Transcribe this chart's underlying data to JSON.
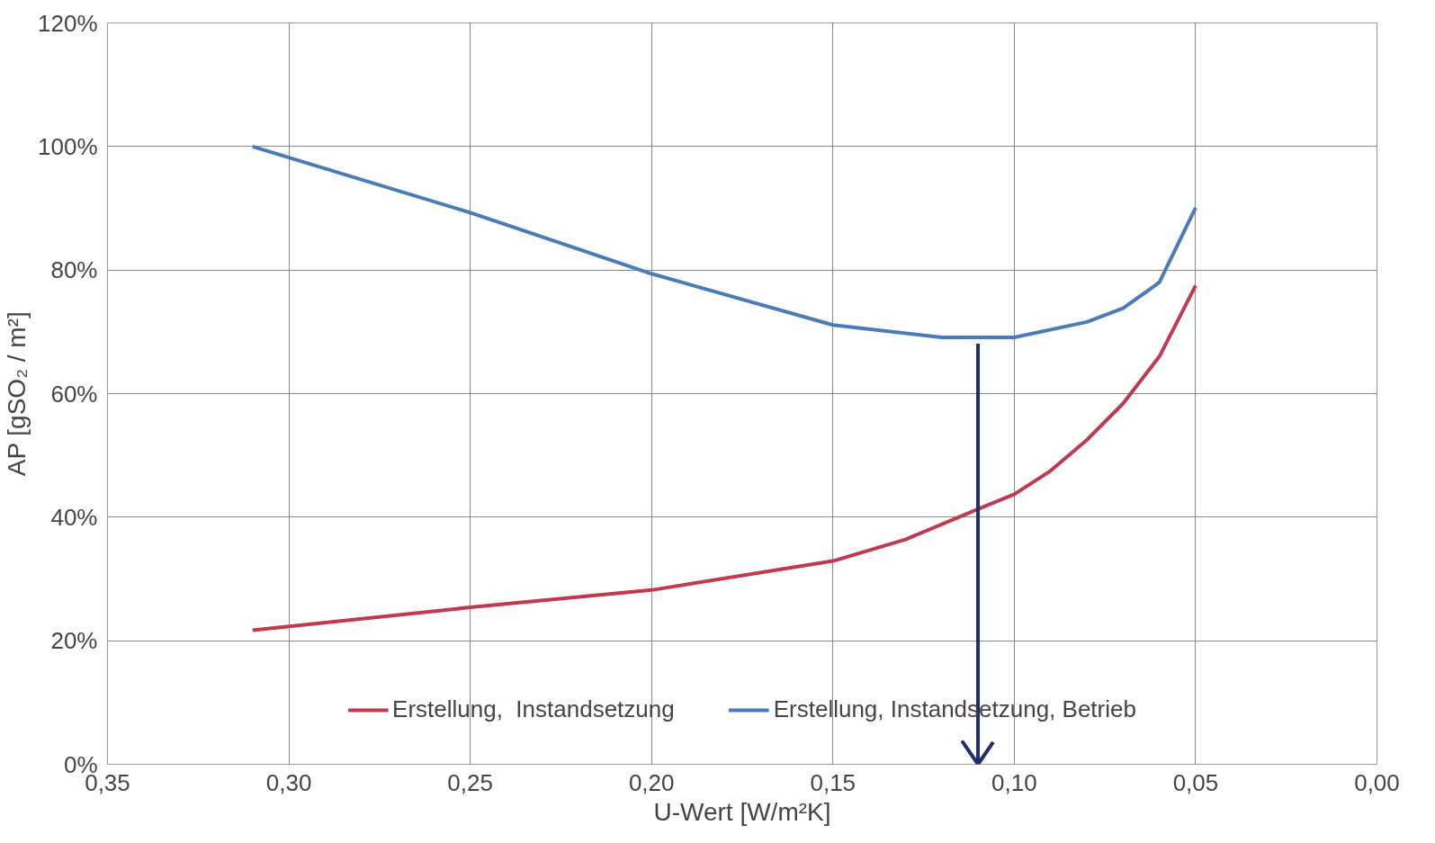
{
  "chart_data": {
    "type": "line",
    "xlabel": "U-Wert [W/m²K]",
    "ylabel": "AP [gSO₂ / m²]",
    "xlim": [
      0.35,
      0.0
    ],
    "ylim": [
      0,
      120
    ],
    "xticks": [
      {
        "value": 0.35,
        "label": "0,35"
      },
      {
        "value": 0.3,
        "label": "0,30"
      },
      {
        "value": 0.25,
        "label": "0,25"
      },
      {
        "value": 0.2,
        "label": "0,20"
      },
      {
        "value": 0.15,
        "label": "0,15"
      },
      {
        "value": 0.1,
        "label": "0,10"
      },
      {
        "value": 0.05,
        "label": "0,05"
      },
      {
        "value": 0.0,
        "label": "0,00"
      }
    ],
    "yticks": [
      {
        "value": 0,
        "label": "0%"
      },
      {
        "value": 20,
        "label": "20%"
      },
      {
        "value": 40,
        "label": "40%"
      },
      {
        "value": 60,
        "label": "60%"
      },
      {
        "value": 80,
        "label": "80%"
      },
      {
        "value": 100,
        "label": "100%"
      },
      {
        "value": 120,
        "label": "120%"
      }
    ],
    "grid": true,
    "legend": "bottom",
    "marker": "none",
    "line_style": "solid",
    "series": [
      {
        "name": "Erstellung,  Instandsetzung",
        "color": "#c0394f",
        "x": [
          0.31,
          0.25,
          0.2,
          0.15,
          0.13,
          0.11,
          0.1,
          0.09,
          0.08,
          0.07,
          0.06,
          0.05
        ],
        "values": [
          21.7,
          25.4,
          28.2,
          32.9,
          36.4,
          41.3,
          43.7,
          47.5,
          52.5,
          58.4,
          66,
          77.5
        ]
      },
      {
        "name": "Erstellung, Instandsetzung, Betrieb",
        "color": "#4a7ab8",
        "x": [
          0.31,
          0.25,
          0.2,
          0.15,
          0.12,
          0.1,
          0.08,
          0.07,
          0.06,
          0.05
        ],
        "values": [
          100,
          89.3,
          79.4,
          71.1,
          69.1,
          69.1,
          71.6,
          73.8,
          78,
          90.1
        ]
      }
    ],
    "ref_lines": [
      {
        "axis": "x",
        "value": 0.11,
        "label": null,
        "color": "#1f2d6b",
        "line_style": "solid"
      }
    ]
  }
}
